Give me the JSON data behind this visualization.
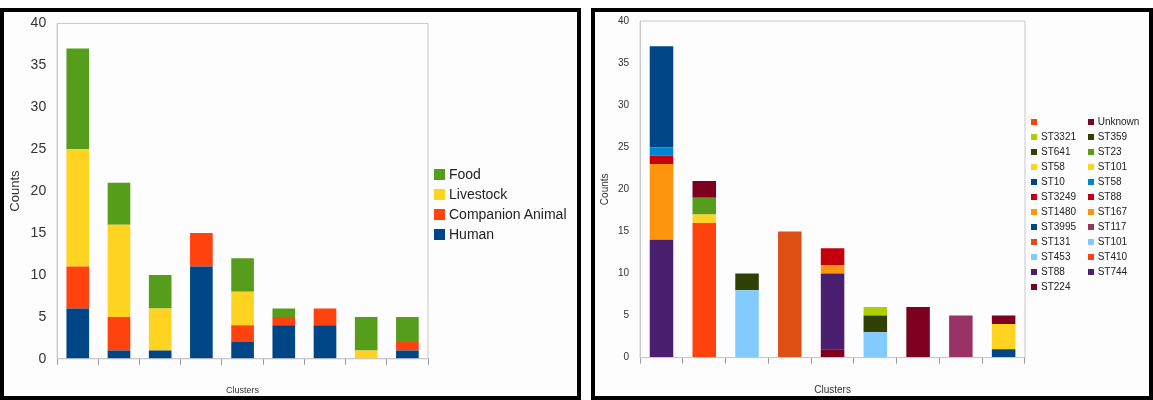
{
  "chart_data": [
    {
      "type": "bar",
      "stacked": true,
      "xlabel": "Clusters",
      "ylabel": "Counts",
      "categories": [
        null,
        null,
        null,
        null,
        null,
        null,
        null,
        null,
        null
      ],
      "ylim": [
        0,
        40
      ],
      "yticks": [
        0,
        5,
        10,
        15,
        20,
        25,
        30,
        35,
        40
      ],
      "grid": false,
      "legend": "right",
      "series": [
        {
          "name": "Human",
          "color": "#004586",
          "values": [
            6,
            1,
            1,
            11,
            2,
            4,
            4,
            null,
            1
          ]
        },
        {
          "name": "Companion Animal",
          "color": "#ff420e",
          "values": [
            5,
            4,
            null,
            4,
            2,
            1,
            2,
            null,
            1
          ]
        },
        {
          "name": "Livestock",
          "color": "#ffd320",
          "values": [
            14,
            11,
            5,
            null,
            4,
            null,
            null,
            1,
            null
          ]
        },
        {
          "name": "Food",
          "color": "#579d1c",
          "values": [
            12,
            5,
            4,
            null,
            4,
            1,
            null,
            4,
            3
          ]
        }
      ]
    },
    {
      "type": "bar",
      "stacked": true,
      "xlabel": "Clusters",
      "ylabel": "Counts",
      "categories": [
        null,
        null,
        null,
        null,
        null,
        null,
        null,
        null,
        null
      ],
      "ylim": [
        0,
        40
      ],
      "yticks": [
        0,
        5,
        10,
        15,
        20,
        25,
        30,
        35,
        40
      ],
      "grid": false,
      "legend": "right",
      "series": [
        {
          "name": "ST224",
          "color": "#7e0021",
          "values": [
            null,
            null,
            null,
            null,
            1,
            null,
            6,
            null,
            null
          ]
        },
        {
          "name": "ST744",
          "color": "#4b1f6f",
          "values": [
            14,
            null,
            null,
            null,
            null,
            null,
            null,
            null,
            null
          ]
        },
        {
          "name": "ST88",
          "color": "#4b1f6f",
          "values": [
            null,
            null,
            null,
            null,
            9,
            null,
            null,
            null,
            null
          ]
        },
        {
          "name": "ST410",
          "color": "#ff420e",
          "values": [
            null,
            16,
            null,
            null,
            null,
            null,
            null,
            null,
            null
          ]
        },
        {
          "name": "ST453",
          "color": "#83caff",
          "values": [
            null,
            null,
            8,
            null,
            null,
            null,
            null,
            null,
            null
          ]
        },
        {
          "name": "ST101",
          "color": "#83caff",
          "values": [
            null,
            null,
            null,
            null,
            null,
            3,
            null,
            null,
            null
          ]
        },
        {
          "name": "ST131",
          "color": "#dc4f15",
          "values": [
            null,
            null,
            null,
            15,
            null,
            null,
            null,
            null,
            null
          ]
        },
        {
          "name": "ST117",
          "color": "#993366",
          "values": [
            null,
            null,
            null,
            null,
            null,
            null,
            null,
            5,
            null
          ]
        },
        {
          "name": "ST3995",
          "color": "#004586",
          "values": [
            null,
            null,
            null,
            null,
            null,
            null,
            null,
            null,
            1
          ]
        },
        {
          "name": "ST167",
          "color": "#ff950e",
          "values": [
            9,
            null,
            null,
            null,
            null,
            null,
            null,
            null,
            null
          ]
        },
        {
          "name": "ST1480",
          "color": "#ff950e",
          "values": [
            null,
            null,
            null,
            null,
            1,
            null,
            null,
            null,
            null
          ]
        },
        {
          "name": "ST88",
          "color": "#c5000b",
          "values": [
            1,
            null,
            null,
            null,
            null,
            null,
            null,
            null,
            null
          ]
        },
        {
          "name": "ST3249",
          "color": "#c5000b",
          "values": [
            null,
            null,
            null,
            null,
            2,
            null,
            null,
            null,
            null
          ]
        },
        {
          "name": "ST58",
          "color": "#0084d1",
          "values": [
            1,
            null,
            null,
            null,
            null,
            null,
            null,
            null,
            null
          ]
        },
        {
          "name": "ST10",
          "color": "#004586",
          "values": [
            12,
            null,
            null,
            null,
            null,
            null,
            null,
            null,
            null
          ]
        },
        {
          "name": "ST101",
          "color": "#ffd320",
          "values": [
            null,
            1,
            null,
            null,
            null,
            null,
            null,
            null,
            null
          ]
        },
        {
          "name": "ST58",
          "color": "#ffd320",
          "values": [
            null,
            null,
            null,
            null,
            null,
            null,
            null,
            null,
            3
          ]
        },
        {
          "name": "ST23",
          "color": "#579d1c",
          "values": [
            null,
            2,
            null,
            null,
            null,
            null,
            null,
            null,
            null
          ]
        },
        {
          "name": "ST641",
          "color": "#314004",
          "values": [
            null,
            null,
            2,
            null,
            null,
            null,
            null,
            null,
            null
          ]
        },
        {
          "name": "ST359",
          "color": "#314004",
          "values": [
            null,
            null,
            null,
            null,
            null,
            2,
            null,
            null,
            null
          ]
        },
        {
          "name": "ST3321",
          "color": "#aecf00",
          "values": [
            null,
            null,
            null,
            null,
            null,
            1,
            null,
            null,
            null
          ]
        },
        {
          "name": "Unknown",
          "color": "#7e0021",
          "values": [
            null,
            2,
            null,
            null,
            null,
            null,
            null,
            null,
            1
          ]
        },
        {
          "color": "#ff420e",
          "values": [
            null,
            null,
            null,
            null,
            null,
            null,
            null,
            null,
            null
          ]
        }
      ]
    }
  ]
}
